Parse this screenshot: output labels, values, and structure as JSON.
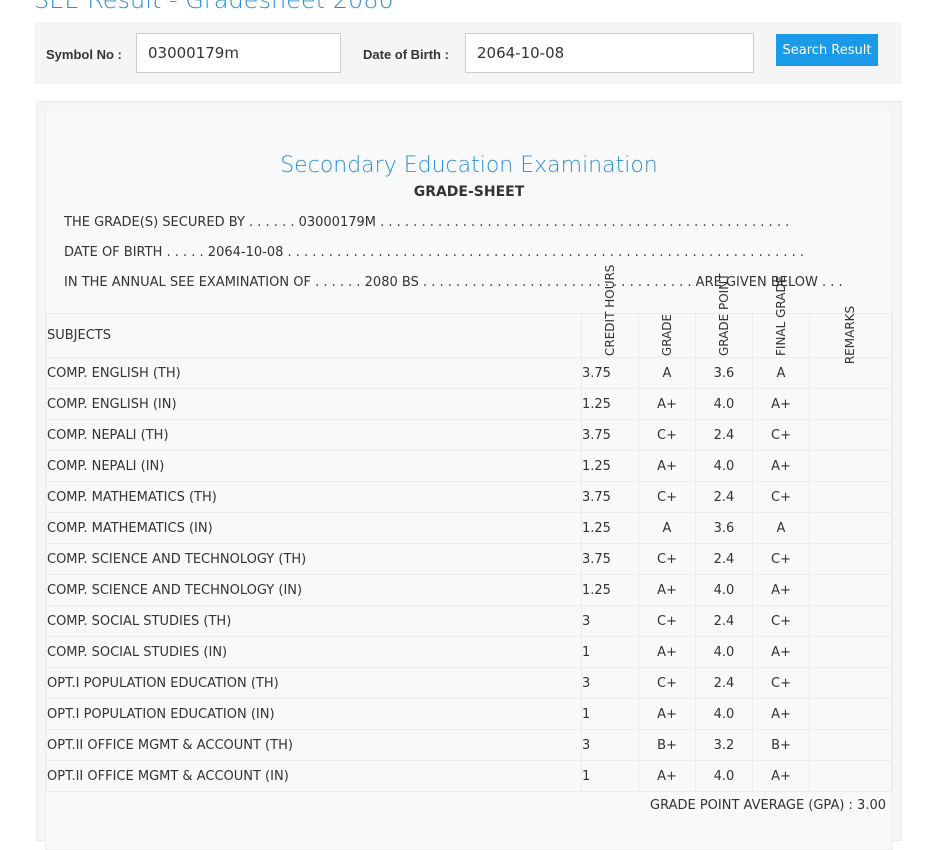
{
  "page_title": "SEE Result - Gradesheet 2080",
  "search": {
    "symbol_label": "Symbol No :",
    "symbol_value": "03000179m",
    "dob_label": "Date of Birth :",
    "dob_value": "2064-10-08",
    "button_label": "Search Result"
  },
  "sheet": {
    "exam_title": "Secondary Education Examination",
    "subtitle": "GRADE-SHEET",
    "line1": "THE GRADE(S) SECURED BY . . . . . . 03000179M . . . . . . . . . . . . . . . . . . . . . . . . . . . . . . . . . . . . . . . . . . . . . . . . . .",
    "line2": "DATE OF BIRTH . . . . . 2064-10-08 . . . . . . . . . . . . . . . . . . . . . . . . . . . . . . . . . . . . . . . . . . . . . . . . . . . . . . . . . . . . . . .",
    "line3": "IN THE ANNUAL SEE EXAMINATION OF . . . . . . 2080 BS . . . . . . . . . . . . . . . . . . . . . . . . . . . . . . . . . ARE GIVEN BELOW . . .",
    "headers": {
      "subjects": "SUBJECTS",
      "credit_hours": "CREDIT HOURS",
      "grade": "GRADE",
      "grade_point": "GRADE POINT",
      "final_grade": "FINAL GRADE",
      "remarks": "REMARKS"
    },
    "rows": [
      {
        "subject": "COMP. ENGLISH (TH)",
        "credit": "3.75",
        "grade": "A",
        "point": "3.6",
        "final": "A",
        "remarks": ""
      },
      {
        "subject": "COMP. ENGLISH (IN)",
        "credit": "1.25",
        "grade": "A+",
        "point": "4.0",
        "final": "A+",
        "remarks": ""
      },
      {
        "subject": "COMP. NEPALI (TH)",
        "credit": "3.75",
        "grade": "C+",
        "point": "2.4",
        "final": "C+",
        "remarks": ""
      },
      {
        "subject": "COMP. NEPALI (IN)",
        "credit": "1.25",
        "grade": "A+",
        "point": "4.0",
        "final": "A+",
        "remarks": ""
      },
      {
        "subject": "COMP. MATHEMATICS (TH)",
        "credit": "3.75",
        "grade": "C+",
        "point": "2.4",
        "final": "C+",
        "remarks": ""
      },
      {
        "subject": "COMP. MATHEMATICS (IN)",
        "credit": "1.25",
        "grade": "A",
        "point": "3.6",
        "final": "A",
        "remarks": ""
      },
      {
        "subject": "COMP. SCIENCE AND TECHNOLOGY (TH)",
        "credit": "3.75",
        "grade": "C+",
        "point": "2.4",
        "final": "C+",
        "remarks": ""
      },
      {
        "subject": "COMP. SCIENCE AND TECHNOLOGY (IN)",
        "credit": "1.25",
        "grade": "A+",
        "point": "4.0",
        "final": "A+",
        "remarks": ""
      },
      {
        "subject": "COMP. SOCIAL STUDIES (TH)",
        "credit": "3",
        "grade": "C+",
        "point": "2.4",
        "final": "C+",
        "remarks": ""
      },
      {
        "subject": "COMP. SOCIAL STUDIES (IN)",
        "credit": "1",
        "grade": "A+",
        "point": "4.0",
        "final": "A+",
        "remarks": ""
      },
      {
        "subject": "OPT.I POPULATION EDUCATION (TH)",
        "credit": "3",
        "grade": "C+",
        "point": "2.4",
        "final": "C+",
        "remarks": ""
      },
      {
        "subject": "OPT.I POPULATION EDUCATION (IN)",
        "credit": "1",
        "grade": "A+",
        "point": "4.0",
        "final": "A+",
        "remarks": ""
      },
      {
        "subject": "OPT.II OFFICE MGMT & ACCOUNT (TH)",
        "credit": "3",
        "grade": "B+",
        "point": "3.2",
        "final": "B+",
        "remarks": ""
      },
      {
        "subject": "OPT.II OFFICE MGMT & ACCOUNT (IN)",
        "credit": "1",
        "grade": "A+",
        "point": "4.0",
        "final": "A+",
        "remarks": ""
      }
    ],
    "gpa_text": "GRADE POINT AVERAGE (GPA) : 3.00"
  }
}
